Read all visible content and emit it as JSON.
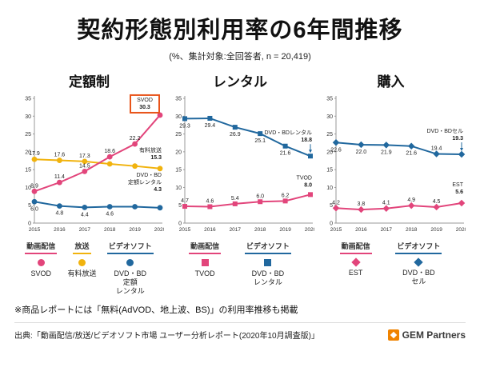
{
  "header": {
    "title": "契約形態別利用率の6年間推移",
    "subtitle": "(%、集計対象:全回答者, n = 20,419)"
  },
  "footnote": "※商品レポートには「無料(AdVOD、地上波、BS)」の利用率推移も掲載",
  "source": "出典:「動画配信/放送/ビデオソフト市場 ユーザー分析レポート(2020年10月調査版)」",
  "logo": {
    "text": "GEM Partners"
  },
  "colors": {
    "pink": "#e2457b",
    "yellow": "#f1b30e",
    "blue": "#21689e",
    "highlight": "#e8541a",
    "axis": "#999999",
    "label": "#222222"
  },
  "chart_data": {
    "type": "line",
    "x": [
      "2015",
      "2016",
      "2017",
      "2018",
      "2019",
      "2020"
    ],
    "ylim": [
      0,
      35
    ],
    "yticks": [
      0,
      5,
      10,
      15,
      20,
      25,
      30,
      35
    ],
    "grid": false,
    "legend_position": "bottom",
    "charts": [
      {
        "title": "定額制",
        "marker": "circle",
        "series": [
          {
            "name": "SVOD",
            "color_key": "pink",
            "values": [
              8.9,
              11.4,
              14.5,
              18.6,
              22.2,
              30.3
            ],
            "point_labels": [
              "8.9",
              "11.4",
              "14.5",
              "18.6",
              "22.2",
              null
            ],
            "label_pos": [
              "above",
              "above",
              "above",
              "above",
              "above",
              null
            ],
            "end_label": {
              "lines": [
                "SVOD",
                "30.3"
              ],
              "dy": -8,
              "boxed": true
            }
          },
          {
            "name": "有料放送",
            "color_key": "yellow",
            "values": [
              17.9,
              17.6,
              17.3,
              16.6,
              16.0,
              15.3
            ],
            "point_labels": [
              "17.9",
              "17.6",
              "17.3",
              null,
              null,
              null
            ],
            "label_pos": [
              "above",
              "above",
              "above",
              null,
              null,
              null
            ],
            "end_label": {
              "lines": [
                "有料放送",
                "15.3"
              ],
              "dy": -12
            }
          },
          {
            "name": "DVD・BD定額レンタル",
            "color_key": "blue",
            "values": [
              6.0,
              4.8,
              4.4,
              4.6,
              4.6,
              4.3
            ],
            "point_labels": [
              "6.0",
              "4.8",
              "4.4",
              "4.6",
              null,
              null
            ],
            "label_pos": [
              "below",
              "below",
              "below",
              "below",
              null,
              null
            ],
            "end_label": {
              "lines": [
                "DVD・BD",
                "定額レンタル",
                "4.3"
              ],
              "dy": -21
            }
          }
        ],
        "legend": [
          {
            "group": "動画配信",
            "group_color": "pink",
            "color_key": "pink",
            "item_lines": [
              "SVOD"
            ]
          },
          {
            "group": "放送",
            "group_color": "yellow",
            "color_key": "yellow",
            "item_lines": [
              "有料放送"
            ]
          },
          {
            "group": "ビデオソフト",
            "group_color": "blue",
            "color_key": "blue",
            "item_lines": [
              "DVD・BD",
              "定額",
              "レンタル"
            ]
          }
        ]
      },
      {
        "title": "レンタル",
        "marker": "square",
        "series": [
          {
            "name": "TVOD",
            "color_key": "pink",
            "values": [
              4.7,
              4.6,
              5.4,
              6.0,
              6.2,
              8.0
            ],
            "point_labels": [
              "4.7",
              "4.6",
              "5.4",
              "6.0",
              "6.2",
              null
            ],
            "label_pos": [
              "above",
              "above",
              "above",
              "above",
              "above",
              null
            ],
            "end_label": {
              "lines": [
                "TVOD",
                "8.0"
              ],
              "dy": -10
            }
          },
          {
            "name": "DVD・BDレンタル",
            "color_key": "blue",
            "values": [
              29.3,
              29.4,
              26.9,
              25.1,
              21.6,
              18.8
            ],
            "point_labels": [
              "29.3",
              "29.4",
              "26.9",
              "25.1",
              "21.6",
              null
            ],
            "label_pos": [
              "below",
              "below",
              "below",
              "below",
              "below",
              null
            ],
            "end_label": {
              "lines": [
                "DVD・BDレンタル",
                "18.8"
              ],
              "dy": -18,
              "connector": true
            }
          }
        ],
        "legend": [
          {
            "group": "動画配信",
            "group_color": "pink",
            "color_key": "pink",
            "item_lines": [
              "TVOD"
            ]
          },
          {
            "group": "ビデオソフト",
            "group_color": "blue",
            "color_key": "blue",
            "item_lines": [
              "DVD・BD",
              "レンタル"
            ]
          }
        ]
      },
      {
        "title": "購入",
        "marker": "diamond",
        "series": [
          {
            "name": "EST",
            "color_key": "pink",
            "values": [
              4.2,
              3.8,
              4.1,
              4.9,
              4.5,
              5.6
            ],
            "point_labels": [
              "4.2",
              "3.8",
              "4.1",
              "4.9",
              "4.5",
              null
            ],
            "label_pos": [
              "above",
              "above",
              "above",
              "above",
              "above",
              null
            ],
            "end_label": {
              "lines": [
                "EST",
                "5.6"
              ],
              "dy": -12
            }
          },
          {
            "name": "DVD・BDセル",
            "color_key": "blue",
            "values": [
              22.6,
              22.0,
              21.9,
              21.6,
              19.4,
              19.3
            ],
            "point_labels": [
              "22.6",
              "22.0",
              "21.9",
              "21.6",
              "19.4",
              null
            ],
            "label_pos": [
              "below",
              "below",
              "below",
              "below",
              "above",
              null
            ],
            "end_label": {
              "lines": [
                "DVD・BDセル",
                "19.3"
              ],
              "dy": -18,
              "connector": true
            }
          }
        ],
        "legend": [
          {
            "group": "動画配信",
            "group_color": "pink",
            "color_key": "pink",
            "item_lines": [
              "EST"
            ]
          },
          {
            "group": "ビデオソフト",
            "group_color": "blue",
            "color_key": "blue",
            "item_lines": [
              "DVD・BD",
              "セル"
            ]
          }
        ]
      }
    ]
  }
}
